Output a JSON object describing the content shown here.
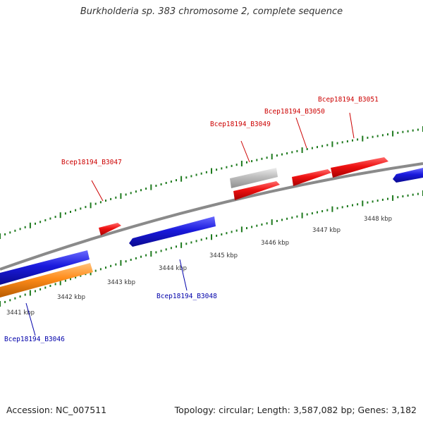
{
  "title": "Burkholderia sp. 383 chromosome 2, complete sequence",
  "footer": {
    "accession": "Accession: NC_007511",
    "summary": "Topology: circular; Length: 3,587,082 bp; Genes: 3,182"
  },
  "colors": {
    "backbone": "#8a8a8a",
    "tick": "#1e7a1e",
    "forward_gene": "#ee1111",
    "reverse_gene": "#1a1add",
    "rna_gene": "#ff8c1a",
    "pseudo_gene": "#bdbdbd",
    "forward_label": "#cc0000",
    "reverse_label": "#0000aa"
  },
  "ticks": [
    {
      "label": "3441 kbp"
    },
    {
      "label": "3442 kbp"
    },
    {
      "label": "3443 kbp"
    },
    {
      "label": "3444 kbp"
    },
    {
      "label": "3445 kbp"
    },
    {
      "label": "3446 kbp"
    },
    {
      "label": "3447 kbp"
    },
    {
      "label": "3448 kbp"
    }
  ],
  "gene_labels": [
    {
      "text": "Bcep18194_B3046",
      "strand": "reverse"
    },
    {
      "text": "Bcep18194_B3047",
      "strand": "forward"
    },
    {
      "text": "Bcep18194_B3048",
      "strand": "reverse"
    },
    {
      "text": "Bcep18194_B3049",
      "strand": "forward"
    },
    {
      "text": "Bcep18194_B3050",
      "strand": "forward"
    },
    {
      "text": "Bcep18194_B3051",
      "strand": "forward"
    }
  ]
}
